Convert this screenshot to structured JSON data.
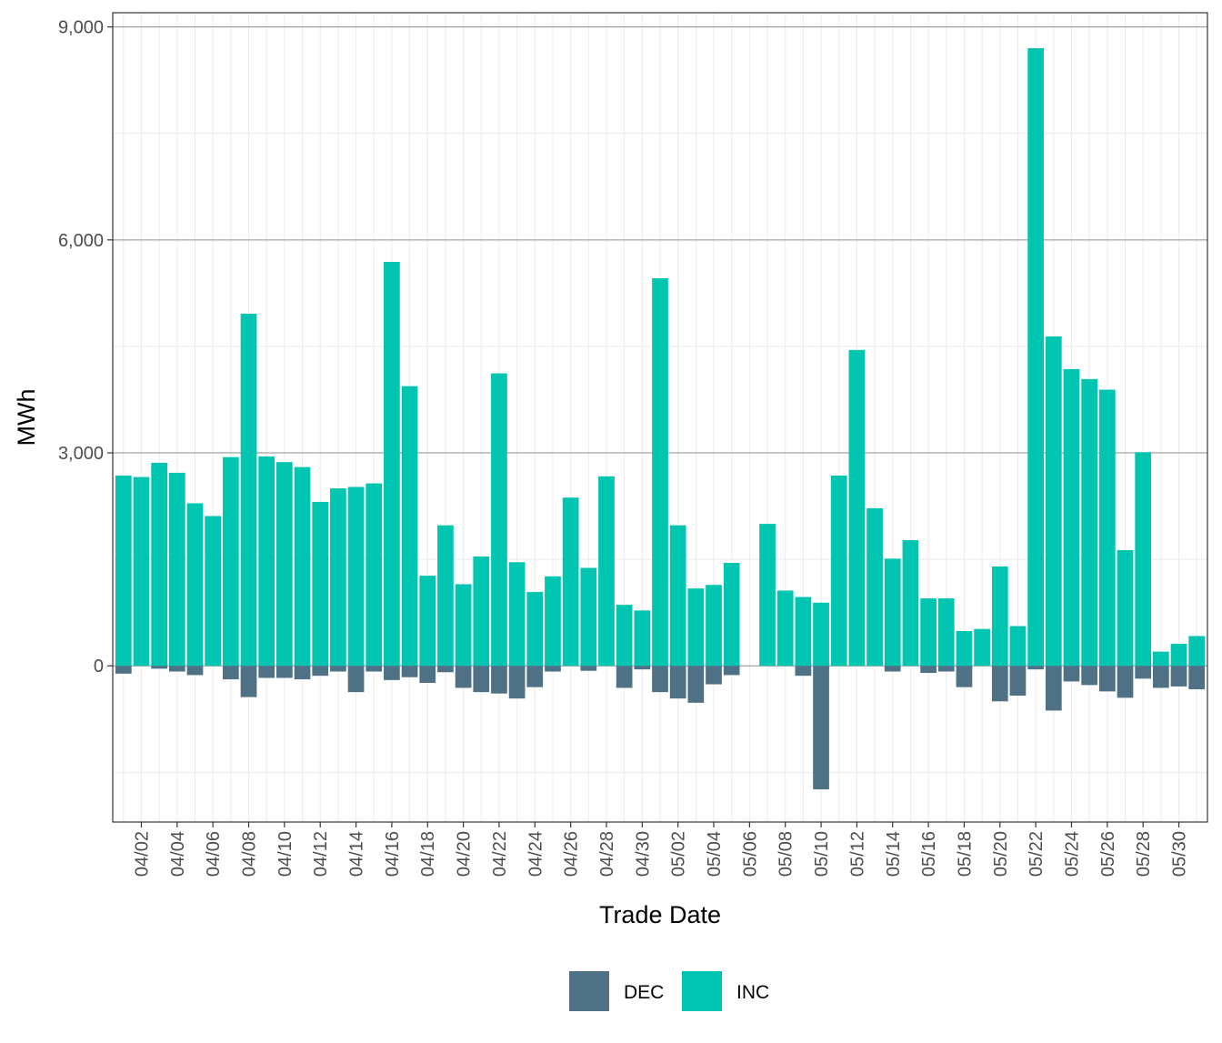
{
  "chart_data": {
    "type": "bar",
    "xlabel": "Trade Date",
    "ylabel": "MWh",
    "ylim": [
      -2200,
      9200
    ],
    "yticks": [
      0,
      3000,
      6000,
      9000
    ],
    "ytick_labels": [
      "0",
      "3,000",
      "6,000",
      "9,000"
    ],
    "grid": true,
    "legend_position": "bottom",
    "categories": [
      "04/01",
      "04/02",
      "04/03",
      "04/04",
      "04/05",
      "04/06",
      "04/07",
      "04/08",
      "04/09",
      "04/10",
      "04/11",
      "04/12",
      "04/13",
      "04/14",
      "04/15",
      "04/16",
      "04/17",
      "04/18",
      "04/19",
      "04/20",
      "04/21",
      "04/22",
      "04/23",
      "04/24",
      "04/25",
      "04/26",
      "04/27",
      "04/28",
      "04/29",
      "04/30",
      "05/01",
      "05/02",
      "05/03",
      "05/04",
      "05/05",
      "05/06",
      "05/07",
      "05/08",
      "05/09",
      "05/10",
      "05/11",
      "05/12",
      "05/13",
      "05/14",
      "05/15",
      "05/16",
      "05/17",
      "05/18",
      "05/19",
      "05/20",
      "05/21",
      "05/22",
      "05/23",
      "05/24",
      "05/25",
      "05/26",
      "05/27",
      "05/28",
      "05/29",
      "05/30",
      "05/31"
    ],
    "xtick_labels": [
      "04/02",
      "04/04",
      "04/06",
      "04/08",
      "04/10",
      "04/12",
      "04/14",
      "04/16",
      "04/18",
      "04/20",
      "04/22",
      "04/24",
      "04/26",
      "04/28",
      "04/30",
      "05/02",
      "05/04",
      "05/06",
      "05/08",
      "05/10",
      "05/12",
      "05/14",
      "05/16",
      "05/18",
      "05/20",
      "05/22",
      "05/24",
      "05/26",
      "05/28",
      "05/30"
    ],
    "series": [
      {
        "name": "DEC",
        "color": "#4e7186",
        "values": [
          -110,
          0,
          -40,
          -80,
          -130,
          0,
          -190,
          -440,
          -170,
          -170,
          -190,
          -140,
          -80,
          -370,
          -80,
          -200,
          -160,
          -240,
          -90,
          -310,
          -370,
          -390,
          -460,
          -300,
          -80,
          0,
          -70,
          0,
          -310,
          -50,
          -370,
          -460,
          -520,
          -260,
          -130,
          0,
          0,
          0,
          -140,
          -1740,
          0,
          0,
          0,
          -80,
          0,
          -100,
          -80,
          -300,
          0,
          -500,
          -420,
          -50,
          -630,
          -220,
          -270,
          -360,
          -450,
          -180,
          -310,
          -290,
          -330
        ]
      },
      {
        "name": "INC",
        "color": "#00c5b0",
        "values": [
          2680,
          2660,
          2860,
          2720,
          2290,
          2110,
          2940,
          4960,
          2950,
          2870,
          2800,
          2310,
          2500,
          2520,
          2570,
          5690,
          3940,
          1270,
          1980,
          1150,
          1540,
          4120,
          1460,
          1040,
          1260,
          2370,
          1380,
          2670,
          860,
          780,
          5460,
          1980,
          1090,
          1140,
          1450,
          0,
          2000,
          1060,
          970,
          890,
          2680,
          4450,
          2220,
          1510,
          1770,
          950,
          950,
          490,
          520,
          1400,
          560,
          8700,
          4640,
          4180,
          4040,
          3890,
          1630,
          3010,
          200,
          310,
          420
        ]
      }
    ],
    "legend": [
      {
        "label": "DEC",
        "color": "#4e7186"
      },
      {
        "label": "INC",
        "color": "#00c5b0"
      }
    ]
  }
}
